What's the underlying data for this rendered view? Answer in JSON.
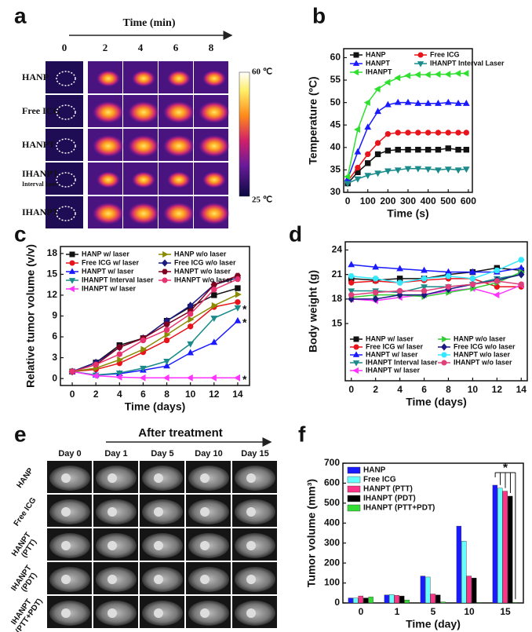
{
  "panel_labels": [
    "a",
    "b",
    "c",
    "d",
    "e",
    "f"
  ],
  "thermal_panel": {
    "axis_title": "Time (min)",
    "columns": [
      "0",
      "2",
      "4",
      "6",
      "8"
    ],
    "rows": [
      "HANP",
      "Free ICG",
      "HANPT",
      "IHANPT",
      "IHANPT"
    ],
    "row_note": "Interval laser",
    "colorbar_max": "60 ℃",
    "colorbar_min": "25 ℃"
  },
  "mri_panel": {
    "arrow_label": "After treatment",
    "columns": [
      "Day 0",
      "Day 1",
      "Day 5",
      "Day 10",
      "Day 15"
    ],
    "rows": [
      "HANP",
      "Free ICG",
      "HANPT (PTT)",
      "IHANPT (PDT)",
      "IHANPT (PTT+PDT)"
    ]
  },
  "chart_data": [
    {
      "type": "line",
      "xlabel": "Time (s)",
      "ylabel": "Temperature (ºC)",
      "x": [
        0,
        50,
        100,
        150,
        200,
        250,
        300,
        350,
        400,
        450,
        500,
        550,
        590
      ],
      "xlim": [
        -20,
        620
      ],
      "xticks": [
        0,
        100,
        200,
        300,
        400,
        500,
        600
      ],
      "ylim": [
        30,
        62
      ],
      "yticks": [
        30,
        35,
        40,
        45,
        50,
        55,
        60
      ],
      "legend": "upper left",
      "legend_order": "row-major",
      "series": [
        {
          "name": "HANP",
          "color": "#111111",
          "marker": "square",
          "values": [
            32,
            34.5,
            36.5,
            38.5,
            39.3,
            39.5,
            39.5,
            39.5,
            39.5,
            39.5,
            39.8,
            39.5,
            39.5
          ]
        },
        {
          "name": "Free ICG",
          "color": "#e8141b",
          "marker": "circle",
          "values": [
            32.5,
            35.5,
            38.5,
            41,
            43,
            43.3,
            43.3,
            43.3,
            43.3,
            43.3,
            43.3,
            43.3,
            43.3
          ]
        },
        {
          "name": "HANPT",
          "color": "#1a1aff",
          "marker": "up",
          "values": [
            33,
            39,
            44.5,
            48,
            49.5,
            50,
            50,
            49.8,
            49.8,
            49.8,
            50,
            49.8,
            49.8
          ]
        },
        {
          "name": "IHANPT Interval Laser",
          "color": "#1a8a8a",
          "marker": "down",
          "values": [
            32,
            33,
            33.8,
            34.3,
            34.8,
            35,
            35.3,
            35.3,
            35.2,
            35,
            35.2,
            35,
            35.2
          ]
        },
        {
          "name": "IHANPT",
          "color": "#2fe02f",
          "marker": "left",
          "values": [
            33.5,
            44,
            50,
            53,
            54.5,
            55.5,
            56,
            56.2,
            56.2,
            56.3,
            56.3,
            56.5,
            56.5
          ]
        }
      ]
    },
    {
      "type": "line",
      "xlabel": "Time (days)",
      "ylabel": "Relative tumor volume (v/v)",
      "x": [
        0,
        2,
        4,
        6,
        8,
        10,
        12,
        14
      ],
      "xlim": [
        -1,
        15
      ],
      "xticks": [
        0,
        2,
        4,
        6,
        8,
        10,
        12,
        14
      ],
      "ylim": [
        -1,
        19
      ],
      "yticks": [
        0,
        3,
        6,
        9,
        12,
        15,
        18
      ],
      "legend": "upper left",
      "legend_order": "column-major",
      "annotations": [
        "*",
        "*",
        "*"
      ],
      "series": [
        {
          "name": "HANP w/ laser",
          "color": "#111111",
          "marker": "square",
          "values": [
            1,
            2.3,
            4.8,
            5.8,
            8.3,
            10.3,
            12,
            13
          ]
        },
        {
          "name": "Free ICG w/ laser",
          "color": "#e8141b",
          "marker": "circle",
          "values": [
            1,
            1.3,
            2.2,
            3.8,
            5.5,
            7.5,
            10.3,
            11
          ]
        },
        {
          "name": "HANPT w/ laser",
          "color": "#1a1aff",
          "marker": "up",
          "values": [
            1,
            0.5,
            0.7,
            1.2,
            1.8,
            3.7,
            5.2,
            8.3
          ]
        },
        {
          "name": "IHANPT Interval laser",
          "color": "#1a8a8a",
          "marker": "down",
          "values": [
            1,
            0.5,
            0.8,
            1.5,
            2.5,
            5,
            8.7,
            10.2
          ]
        },
        {
          "name": "IHANPT w/ laser",
          "color": "#ff33ff",
          "marker": "left",
          "values": [
            1,
            0.4,
            0.2,
            0.1,
            0.1,
            0.1,
            0.1,
            0.1
          ]
        },
        {
          "name": "HANP w/o laser",
          "color": "#8b8b00",
          "marker": "right",
          "values": [
            1,
            1.5,
            2.7,
            4.2,
            6.3,
            8.5,
            10.5,
            12.1
          ]
        },
        {
          "name": "Free ICG w/o laser",
          "color": "#1a1a80",
          "marker": "diamond",
          "values": [
            1,
            2.3,
            4.5,
            5.8,
            8.3,
            10.5,
            13.5,
            14.5
          ]
        },
        {
          "name": "HANPT w/o laser",
          "color": "#800020",
          "marker": "hexagon",
          "values": [
            1,
            2,
            4.5,
            5.8,
            7.8,
            9.7,
            13.5,
            14.8
          ]
        },
        {
          "name": "IHANPT w/o laser",
          "color": "#e8326e",
          "marker": "circle",
          "values": [
            1,
            2,
            3.5,
            5.5,
            7,
            9.3,
            12.8,
            14.3
          ]
        }
      ]
    },
    {
      "type": "line",
      "xlabel": "Time (days)",
      "ylabel": "Body weight (g)",
      "x": [
        0,
        2,
        4,
        6,
        8,
        10,
        12,
        14
      ],
      "xlim": [
        -0.5,
        14.5
      ],
      "xticks": [
        0,
        2,
        4,
        6,
        8,
        10,
        12,
        14
      ],
      "ylim": [
        8,
        25
      ],
      "yticks": [
        15,
        18,
        21,
        24
      ],
      "legend": "lower left",
      "legend_order": "column-major",
      "series": [
        {
          "name": "HANP w/ laser",
          "color": "#111111",
          "marker": "square",
          "values": [
            20.5,
            20.3,
            20.5,
            20.5,
            21,
            21.3,
            21.8,
            21.5
          ]
        },
        {
          "name": "Free ICG w/ laser",
          "color": "#e8141b",
          "marker": "circle",
          "values": [
            20,
            20.2,
            20,
            20.3,
            20.5,
            20.5,
            19.5,
            19.5
          ]
        },
        {
          "name": "HANPT w/ laser",
          "color": "#1a1aff",
          "marker": "up",
          "values": [
            22.2,
            21.9,
            21.7,
            21.5,
            21.3,
            21.3,
            21.3,
            21.8
          ]
        },
        {
          "name": "IHANPT Interval laser",
          "color": "#1a8a8a",
          "marker": "down",
          "values": [
            19,
            19,
            18.8,
            19.5,
            19.5,
            19.8,
            20.5,
            21
          ]
        },
        {
          "name": "IHANPT w/ laser",
          "color": "#ff33ff",
          "marker": "left",
          "values": [
            18,
            17.8,
            18.2,
            18.5,
            19,
            19.3,
            18.5,
            19.7
          ]
        },
        {
          "name": "HANP w/o laser",
          "color": "#33cc33",
          "marker": "right",
          "values": [
            18.2,
            18.5,
            18.5,
            18.3,
            18.8,
            19.3,
            20,
            21.3
          ]
        },
        {
          "name": "Free ICG w/o laser",
          "color": "#1a1a80",
          "marker": "diamond",
          "values": [
            18,
            18,
            18.5,
            18.5,
            19.2,
            19.8,
            20.3,
            21
          ]
        },
        {
          "name": "HANPT w/o laser",
          "color": "#33e8ff",
          "marker": "hexagon",
          "values": [
            20.8,
            20.5,
            20,
            20.5,
            20.8,
            20.5,
            21.5,
            22.8
          ]
        },
        {
          "name": "IHANPT w/o laser",
          "color": "#e0407a",
          "marker": "circle",
          "values": [
            18.5,
            18.8,
            19,
            19,
            19.5,
            19.8,
            20.2,
            19.8
          ]
        }
      ]
    },
    {
      "type": "bar",
      "xlabel": "Time (day)",
      "ylabel": "Tumor volume (mm³)",
      "categories": [
        "0",
        "1",
        "5",
        "10",
        "15"
      ],
      "ylim": [
        0,
        700
      ],
      "yticks": [
        0,
        100,
        200,
        300,
        400,
        500,
        600,
        700
      ],
      "legend": "upper left",
      "annotations": [
        "*"
      ],
      "series": [
        {
          "name": "HANP",
          "color": "#1a1aff",
          "values": [
            25,
            40,
            135,
            385,
            590
          ]
        },
        {
          "name": "Free ICG",
          "color": "#66ffff",
          "values": [
            25,
            42,
            130,
            310,
            575
          ]
        },
        {
          "name": "HANPT (PTT)",
          "color": "#ff3388",
          "values": [
            35,
            38,
            45,
            135,
            560
          ]
        },
        {
          "name": "IHANPT (PDT)",
          "color": "#000000",
          "values": [
            25,
            35,
            40,
            125,
            535
          ]
        },
        {
          "name": "IHANPT (PTT+PDT)",
          "color": "#33dd33",
          "values": [
            30,
            15,
            5,
            3,
            3
          ]
        }
      ]
    }
  ]
}
